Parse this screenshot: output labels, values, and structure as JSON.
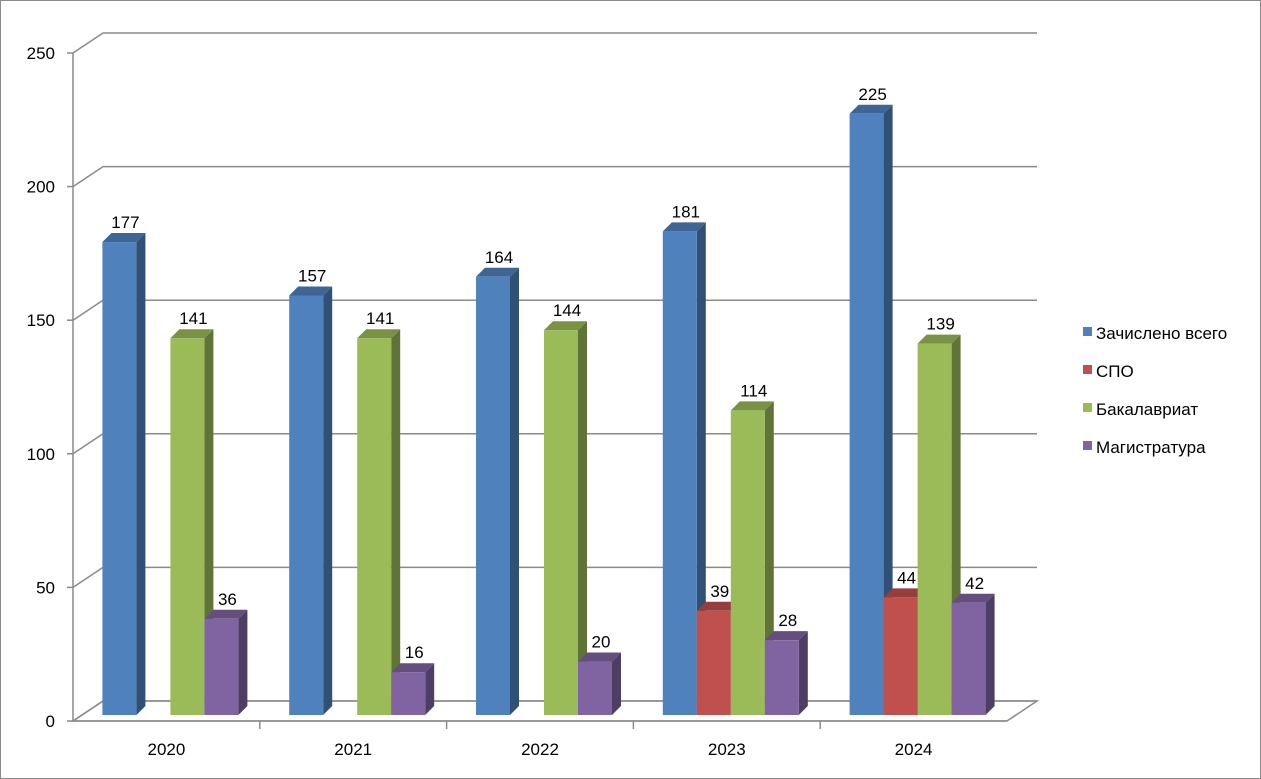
{
  "chart_data": {
    "type": "bar",
    "title": "",
    "xlabel": "",
    "ylabel": "",
    "ylim": [
      0,
      250
    ],
    "yticks": [
      "0",
      "50",
      "100",
      "150",
      "200",
      "250"
    ],
    "categories": [
      "2020",
      "2021",
      "2022",
      "2023",
      "2024"
    ],
    "series": [
      {
        "name": "Зачислено всего",
        "color": "#4f81bd",
        "values": [
          177,
          157,
          164,
          181,
          225
        ]
      },
      {
        "name": "СПО",
        "color": "#c0504d",
        "values": [
          null,
          null,
          null,
          39,
          44
        ]
      },
      {
        "name": "Бакалавриат",
        "color": "#9bbb59",
        "values": [
          141,
          141,
          144,
          114,
          139
        ]
      },
      {
        "name": "Магистратура",
        "color": "#8064a2",
        "values": [
          36,
          16,
          20,
          28,
          42
        ]
      }
    ],
    "grid": true,
    "legend_position": "right",
    "style": "3d-column"
  }
}
